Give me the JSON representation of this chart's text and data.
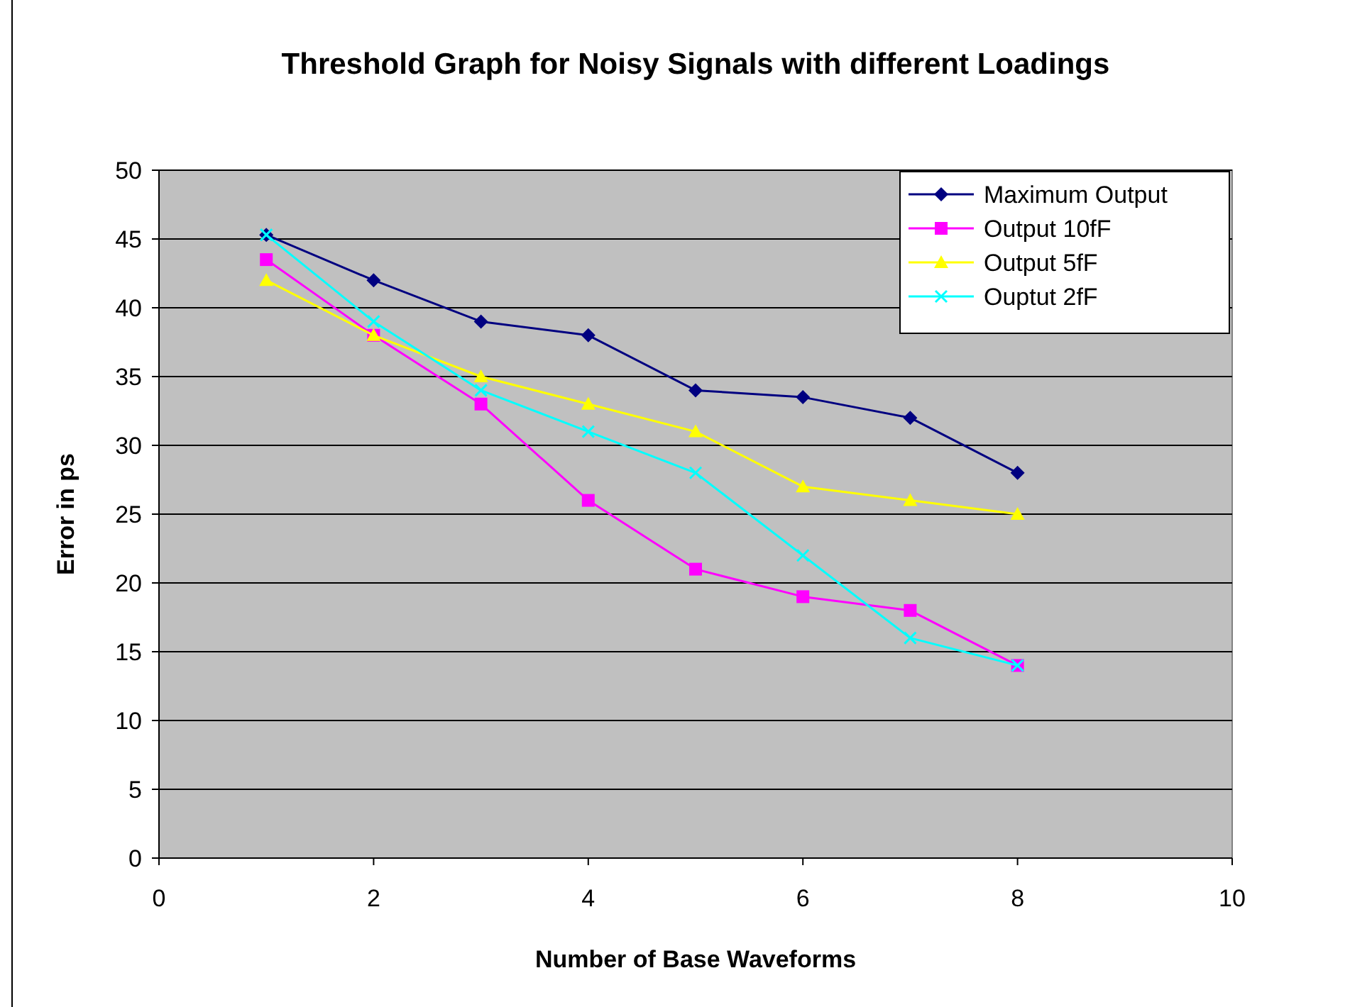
{
  "chart_data": {
    "type": "line",
    "title": "Threshold Graph for Noisy Signals with different Loadings",
    "xlabel": "Number of Base Waveforms",
    "ylabel": "Error in ps",
    "x": [
      1,
      2,
      3,
      4,
      5,
      6,
      7,
      8
    ],
    "series": [
      {
        "name": "Maximum Output",
        "color": "#000080",
        "marker": "diamond",
        "values": [
          45.3,
          42,
          39,
          38,
          34,
          33.5,
          32,
          28
        ]
      },
      {
        "name": "Output 10fF",
        "color": "#ff00ff",
        "marker": "square",
        "values": [
          43.5,
          38,
          33,
          26,
          21,
          19,
          18,
          14
        ]
      },
      {
        "name": "Output 5fF",
        "color": "#ffff00",
        "marker": "triangle",
        "values": [
          42,
          38,
          35,
          33,
          31,
          27,
          26,
          25
        ]
      },
      {
        "name": "Ouptut 2fF",
        "color": "#00ffff",
        "marker": "cross",
        "values": [
          45.3,
          39,
          34,
          31,
          28,
          22,
          16,
          14
        ]
      }
    ],
    "xlim": [
      0,
      10
    ],
    "xticks": [
      0,
      2,
      4,
      6,
      8,
      10
    ],
    "ylim": [
      0,
      50
    ],
    "yticks": [
      0,
      5,
      10,
      15,
      20,
      25,
      30,
      35,
      40,
      45,
      50
    ],
    "grid": "y",
    "legend": "top right",
    "line_style": "solid"
  }
}
